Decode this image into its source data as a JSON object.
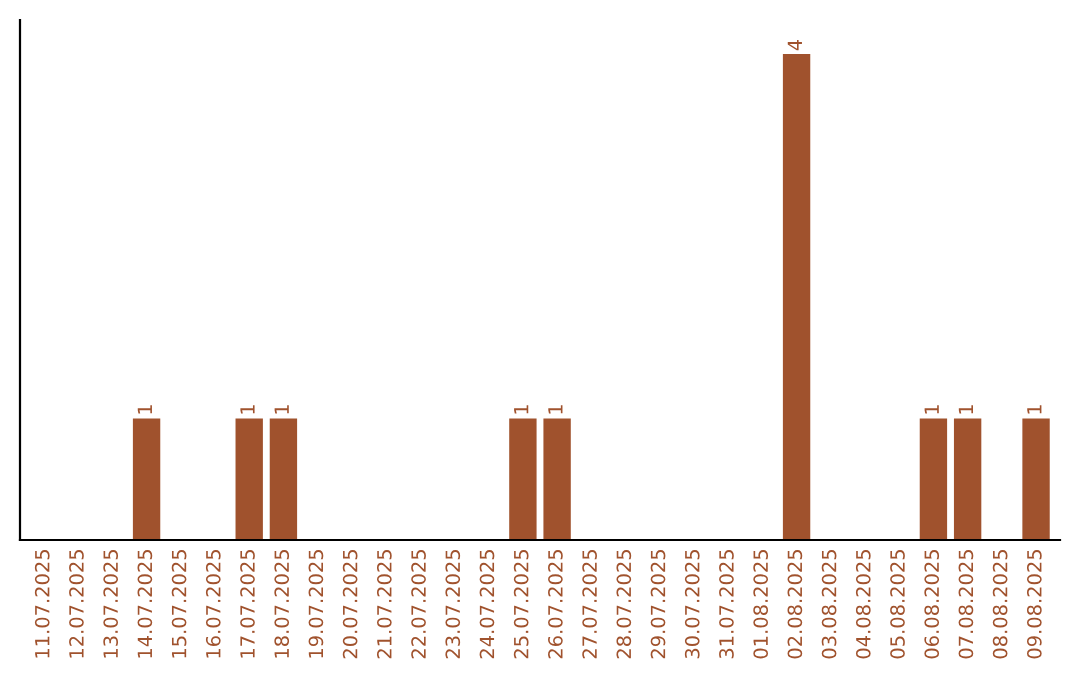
{
  "chart_data": {
    "type": "bar",
    "categories": [
      "11.07.2025",
      "12.07.2025",
      "13.07.2025",
      "14.07.2025",
      "15.07.2025",
      "16.07.2025",
      "17.07.2025",
      "18.07.2025",
      "19.07.2025",
      "20.07.2025",
      "21.07.2025",
      "22.07.2025",
      "23.07.2025",
      "24.07.2025",
      "25.07.2025",
      "26.07.2025",
      "27.07.2025",
      "28.07.2025",
      "29.07.2025",
      "30.07.2025",
      "31.07.2025",
      "01.08.2025",
      "02.08.2025",
      "03.08.2025",
      "04.08.2025",
      "05.08.2025",
      "06.08.2025",
      "07.08.2025",
      "08.08.2025",
      "09.08.2025"
    ],
    "values": [
      0,
      0,
      0,
      1,
      0,
      0,
      1,
      1,
      0,
      0,
      0,
      0,
      0,
      0,
      1,
      1,
      0,
      0,
      0,
      0,
      0,
      0,
      4,
      0,
      0,
      0,
      1,
      1,
      0,
      1
    ],
    "value_labels": [
      null,
      null,
      null,
      "1",
      null,
      null,
      "1",
      "1",
      null,
      null,
      null,
      null,
      null,
      null,
      "1",
      "1",
      null,
      null,
      null,
      null,
      null,
      null,
      "4",
      null,
      null,
      null,
      "1",
      "1",
      null,
      "1"
    ],
    "color": "#a0522d",
    "tick_labels": "x",
    "grid": false,
    "legend": false
  }
}
